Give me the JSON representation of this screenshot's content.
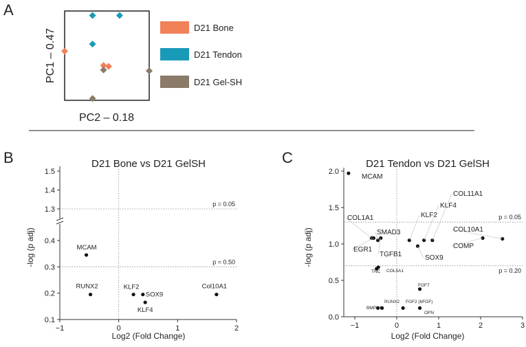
{
  "panels": {
    "A": {
      "letter": "A"
    },
    "B": {
      "letter": "B"
    },
    "C": {
      "letter": "C"
    }
  },
  "colors": {
    "bone": "#f08158",
    "tendon": "#1a9ab9",
    "gel": "#8a7a68",
    "point": "#111111",
    "threshold": "#888888"
  },
  "chart_data": [
    {
      "type": "scatter",
      "title": "",
      "xlabel": "PC2 – 0.18",
      "ylabel": "PC1 – 0.47",
      "grid": false,
      "legend_placement": "right",
      "series": [
        {
          "name": "D21 Bone",
          "color": "#f08158",
          "points": [
            [
              0,
              0.55
            ],
            [
              0.46,
              0.39
            ],
            [
              0.52,
              0.38
            ]
          ]
        },
        {
          "name": "D21 Tendon",
          "color": "#1a9ab9",
          "points": [
            [
              0.33,
              0.95
            ],
            [
              0.65,
              0.95
            ],
            [
              0.33,
              0.63
            ]
          ]
        },
        {
          "name": "D21 Gel-SH",
          "color": "#8a7a68",
          "points": [
            [
              0.46,
              0.34
            ],
            [
              1.0,
              0.33
            ],
            [
              0.33,
              0.02
            ]
          ]
        }
      ]
    },
    {
      "type": "scatter",
      "title": "D21 Bone vs D21 GelSH",
      "xlabel": "Log2 (Fold Change)",
      "ylabel": "-log (p adj)",
      "xlim": [
        -1,
        2
      ],
      "xticks": [
        "−1",
        "0",
        "1",
        "2"
      ],
      "y_break": true,
      "ylim_lower": [
        0.1,
        0.4
      ],
      "yticks_lower": [
        "0.1",
        "0.2",
        "0.3",
        "0.4"
      ],
      "ylim_upper": [
        1.2,
        1.5
      ],
      "yticks_upper": [
        "1.3",
        "1.4",
        "1.5"
      ],
      "thresholds": [
        {
          "label": "p = 0.05",
          "y": 1.3
        },
        {
          "label": "p = 0.50",
          "y": 0.3
        }
      ],
      "points": [
        {
          "label": "MCAM",
          "x": -0.55,
          "y": 0.345
        },
        {
          "label": "RUNX2",
          "x": -0.48,
          "y": 0.195
        },
        {
          "label": "KLF2",
          "x": 0.25,
          "y": 0.195
        },
        {
          "label": "SOX9",
          "x": 0.41,
          "y": 0.195
        },
        {
          "label": "KLF4",
          "x": 0.45,
          "y": 0.165
        },
        {
          "label": "Col10A1",
          "x": 1.66,
          "y": 0.195
        }
      ]
    },
    {
      "type": "scatter",
      "title": "D21 Tendon vs D21 GelSH",
      "xlabel": "Log2 (Fold Change)",
      "ylabel": "-log (p adj)",
      "xlim": [
        -1.5,
        3
      ],
      "xticks": [
        "−1",
        "0",
        "1",
        "2",
        "3"
      ],
      "ylim": [
        0,
        2.0
      ],
      "yticks": [
        "0.0",
        "0.5",
        "1.0",
        "1.5",
        "2.0"
      ],
      "thresholds": [
        {
          "label": "p = 0.05",
          "y": 1.3
        },
        {
          "label": "p = 0.20",
          "y": 0.7
        }
      ],
      "points": [
        {
          "label": "MCAM",
          "x": -1.15,
          "y": 1.97
        },
        {
          "label": "COL1A1",
          "x": -0.6,
          "y": 1.08
        },
        {
          "label": "EGR1",
          "x": -0.55,
          "y": 1.08
        },
        {
          "label": "SMAD3",
          "x": -0.45,
          "y": 1.05
        },
        {
          "label": "TGFB1",
          "x": -0.38,
          "y": 1.08
        },
        {
          "label": "KLF2",
          "x": 0.3,
          "y": 1.05
        },
        {
          "label": "SOX9",
          "x": 0.5,
          "y": 0.97
        },
        {
          "label": "KLF4",
          "x": 0.65,
          "y": 1.05
        },
        {
          "label": "COL11A1",
          "x": 0.85,
          "y": 1.05
        },
        {
          "label": "COMP",
          "x": 2.05,
          "y": 1.08
        },
        {
          "label": "COL10A1",
          "x": 2.52,
          "y": 1.07
        },
        {
          "label": "TNC",
          "x": -0.48,
          "y": 0.66
        },
        {
          "label": "COL5A1",
          "x": -0.44,
          "y": 0.68
        },
        {
          "label": "FGF7",
          "x": 0.55,
          "y": 0.38
        },
        {
          "label": "RUNX2",
          "x": -0.45,
          "y": 0.12
        },
        {
          "label": "BMP14",
          "x": -0.35,
          "y": 0.12
        },
        {
          "label": "FGF2 (bFGF)",
          "x": 0.15,
          "y": 0.12
        },
        {
          "label": "OPN",
          "x": 0.55,
          "y": 0.12
        }
      ]
    }
  ]
}
